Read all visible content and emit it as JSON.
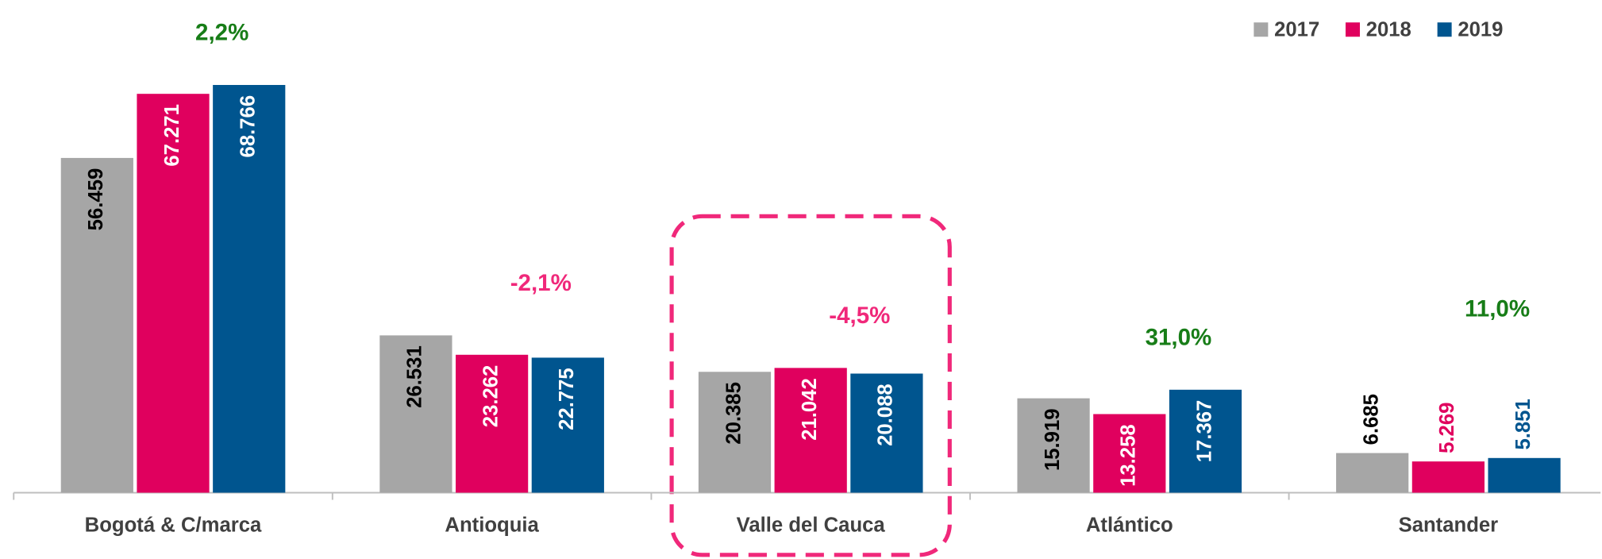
{
  "chart_data": {
    "type": "bar",
    "categories": [
      "Bogotá & C/marca",
      "Antioquia",
      "Valle del Cauca",
      "Atlántico",
      "Santander"
    ],
    "series": [
      {
        "name": "2017",
        "color": "#a6a6a6",
        "values": [
          56459,
          26531,
          20385,
          15919,
          6685
        ],
        "value_labels": [
          "56.459",
          "26.531",
          "20.385",
          "15.919",
          "6.685"
        ]
      },
      {
        "name": "2018",
        "color": "#e0005e",
        "values": [
          67271,
          23262,
          21042,
          13258,
          5269
        ],
        "value_labels": [
          "67.271",
          "23.262",
          "21.042",
          "13.258",
          "5.269"
        ]
      },
      {
        "name": "2019",
        "color": "#00558f",
        "values": [
          68766,
          22775,
          20088,
          17367,
          5851
        ],
        "value_labels": [
          "68.766",
          "22.775",
          "20.088",
          "17.367",
          "5.851"
        ]
      }
    ],
    "annotations": [
      {
        "text": "2,2%",
        "color": "#177d17"
      },
      {
        "text": "-2,1%",
        "color": "#f0287a"
      },
      {
        "text": "-4,5%",
        "color": "#f0287a"
      },
      {
        "text": "31,0%",
        "color": "#177d17"
      },
      {
        "text": "11,0%",
        "color": "#177d17"
      }
    ],
    "highlight": "Valle del Cauca",
    "ylim": [
      0,
      80000
    ],
    "legend": "top-right"
  }
}
